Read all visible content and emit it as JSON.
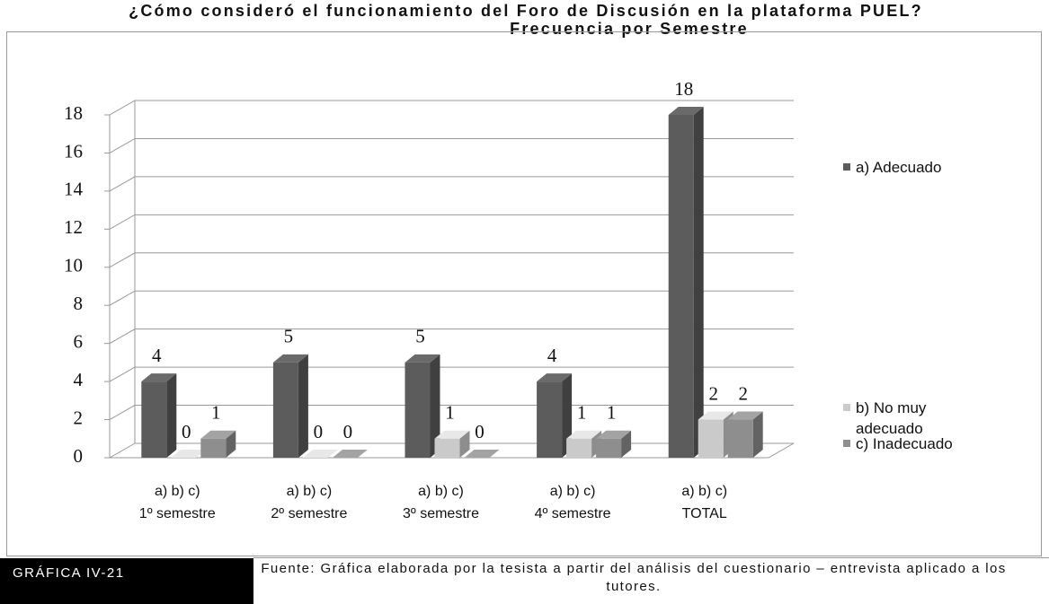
{
  "chart_data": {
    "type": "bar3d",
    "title": "¿Cómo consideró el funcionamiento del Foro de Discusión en la plataforma PUEL?",
    "subtitle": "Frecuencia por Semestre",
    "categories": [
      [
        "a) b) c)",
        "1º semestre"
      ],
      [
        "a) b) c)",
        "2º semestre"
      ],
      [
        "a) b) c)",
        "3º semestre"
      ],
      [
        "a) b) c)",
        "4º semestre"
      ],
      [
        "a) b) c)",
        "TOTAL"
      ]
    ],
    "series": [
      {
        "name": "a) Adecuado",
        "color": "#5c5c5c",
        "values": [
          4,
          5,
          5,
          4,
          18
        ]
      },
      {
        "name": "b) No muy adecuado",
        "color": "#cacaca",
        "values": [
          0,
          0,
          1,
          1,
          2
        ]
      },
      {
        "name": "c) Inadecuado",
        "color": "#8e8e8e",
        "values": [
          1,
          0,
          0,
          1,
          2
        ]
      }
    ],
    "ylim": [
      0,
      18
    ],
    "yticks": [
      0,
      2,
      4,
      6,
      8,
      10,
      12,
      14,
      16,
      18
    ],
    "grid": true,
    "legend": "right"
  },
  "footer": {
    "label": "GRÁFICA IV-21",
    "source": "Fuente: Gráfica elaborada por la tesista a partir del análisis del cuestionario – entrevista aplicado a los tutores."
  }
}
